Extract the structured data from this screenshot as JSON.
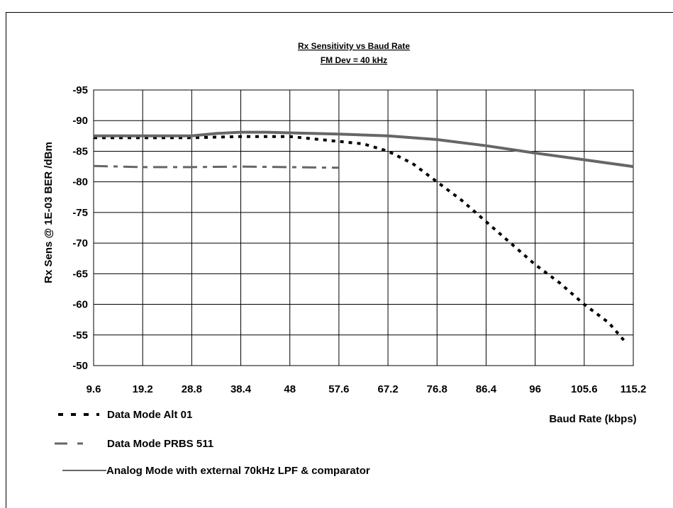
{
  "chart_data": {
    "type": "line",
    "title": "Rx Sensitivity vs Baud Rate",
    "subtitle": "FM Dev = 40 kHz",
    "xlabel": "Baud Rate (kbps)",
    "ylabel": "Rx Sens @ 1E-03 BER /dBm",
    "x_ticks": [
      "9.6",
      "19.2",
      "28.8",
      "38.4",
      "48",
      "57.6",
      "67.2",
      "76.8",
      "86.4",
      "96",
      "105.6",
      "115.2"
    ],
    "y_ticks": [
      "-95",
      "-90",
      "-85",
      "-80",
      "-75",
      "-70",
      "-65",
      "-60",
      "-55",
      "-50"
    ],
    "xlim": [
      9.6,
      115.2
    ],
    "ylim": [
      -95,
      -50
    ],
    "y_axis_reversed": true,
    "grid": true,
    "legend_position": "bottom-left",
    "series": [
      {
        "name": "Data Mode Alt 01",
        "style": "dotted",
        "color": "#000000",
        "x": [
          9.6,
          19.2,
          28.8,
          38.4,
          48,
          57.6,
          62.4,
          67.2,
          72,
          76.8,
          81.6,
          86.4,
          91.2,
          96,
          100.8,
          105.6,
          110.4,
          113.5
        ],
        "y": [
          -87.2,
          -87.2,
          -87.2,
          -87.4,
          -87.4,
          -86.6,
          -86.2,
          -85,
          -83,
          -80,
          -77,
          -73.5,
          -70,
          -66.5,
          -63.5,
          -60,
          -57,
          -54
        ]
      },
      {
        "name": "Data Mode PRBS 511",
        "style": "dash-dot",
        "color": "#666666",
        "x": [
          9.6,
          19.2,
          28.8,
          38.4,
          48,
          57.6
        ],
        "y": [
          -82.6,
          -82.4,
          -82.4,
          -82.5,
          -82.4,
          -82.3
        ]
      },
      {
        "name": "Analog Mode with external 70kHz LPF & comparator",
        "style": "solid",
        "color": "#666666",
        "x": [
          9.6,
          19.2,
          28.8,
          33.6,
          38.4,
          43.2,
          48,
          57.6,
          67.2,
          76.8,
          86.4,
          96,
          105.6,
          115.2
        ],
        "y": [
          -87.5,
          -87.5,
          -87.5,
          -87.9,
          -88.1,
          -88.1,
          -88,
          -87.8,
          -87.5,
          -86.9,
          -85.9,
          -84.7,
          -83.6,
          -82.5
        ]
      }
    ]
  }
}
